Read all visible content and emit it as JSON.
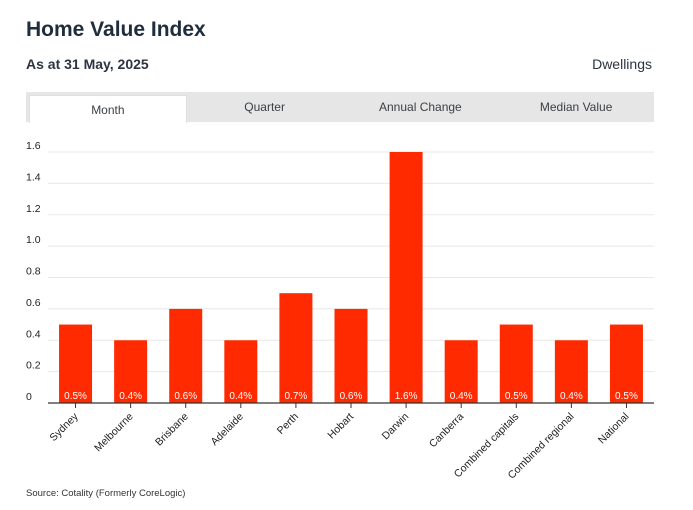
{
  "header": {
    "title": "Home Value Index",
    "subtitle": "As at 31 May, 2025",
    "segment": "Dwellings"
  },
  "tabs": [
    {
      "label": "Month",
      "active": true
    },
    {
      "label": "Quarter",
      "active": false
    },
    {
      "label": "Annual Change",
      "active": false
    },
    {
      "label": "Median Value",
      "active": false
    }
  ],
  "chart_data": {
    "type": "bar",
    "categories": [
      "Sydney",
      "Melbourne",
      "Brisbane",
      "Adelaide",
      "Perth",
      "Hobart",
      "Darwin",
      "Canberra",
      "Combined capitals",
      "Combined regional",
      "National"
    ],
    "values": [
      0.5,
      0.4,
      0.6,
      0.4,
      0.7,
      0.6,
      1.6,
      0.4,
      0.5,
      0.4,
      0.5
    ],
    "data_labels": [
      "0.5%",
      "0.4%",
      "0.6%",
      "0.4%",
      "0.7%",
      "0.6%",
      "1.6%",
      "0.4%",
      "0.5%",
      "0.4%",
      "0.5%"
    ],
    "yticks": [
      "0",
      "0.2",
      "0.4",
      "0.6",
      "0.8",
      "1.0",
      "1.2",
      "1.4",
      "1.6"
    ],
    "ylim": [
      0,
      1.6
    ],
    "grid": true,
    "bar_color": "#ff2a00"
  },
  "footer": {
    "source": "Source: Cotality (Formerly CoreLogic)"
  }
}
